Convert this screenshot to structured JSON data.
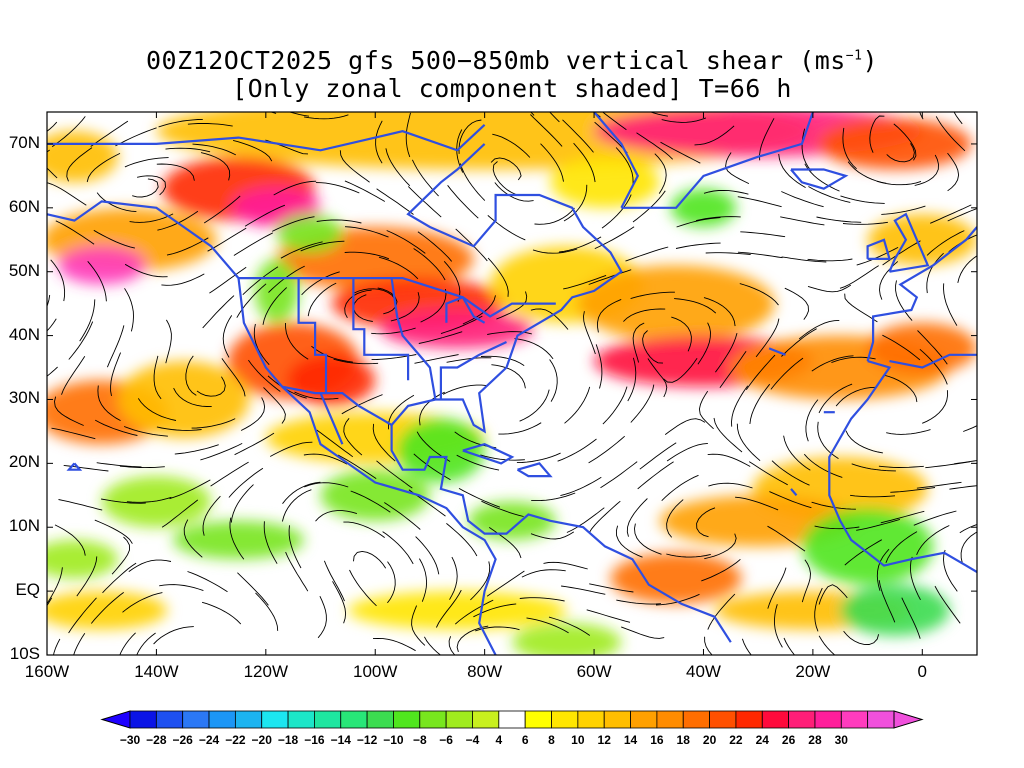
{
  "title": {
    "line1": "00Z12OCT2025 gfs 500−850mb vertical shear (ms",
    "unit_sup": "−1",
    "line1_end": ")",
    "line2": "[Only zonal component shaded] T=66 h"
  },
  "map": {
    "lat_labels": [
      "70N",
      "60N",
      "50N",
      "40N",
      "30N",
      "20N",
      "10N",
      "EQ",
      "10S"
    ],
    "lon_labels": [
      "160W",
      "140W",
      "120W",
      "100W",
      "80W",
      "60W",
      "40W",
      "20W",
      "0"
    ],
    "lat_range": [
      -10,
      75
    ],
    "lon_range": [
      -160,
      10
    ],
    "coastline_color": "#2f4fe0",
    "streamline_color": "#000000"
  },
  "colorbar": {
    "labels": [
      "−30",
      "−28",
      "−26",
      "−24",
      "−22",
      "−20",
      "−18",
      "−16",
      "−14",
      "−12",
      "−10",
      "−8",
      "−6",
      "−4",
      "4",
      "6",
      "8",
      "10",
      "12",
      "14",
      "16",
      "18",
      "20",
      "22",
      "24",
      "26",
      "28",
      "30"
    ],
    "colors": [
      "#0a14e6",
      "#1e50f0",
      "#2b78f5",
      "#1c96f5",
      "#1cb4f0",
      "#1ce6f0",
      "#1ce6c8",
      "#1ee6a0",
      "#28e678",
      "#3cdc50",
      "#50e61e",
      "#78e61e",
      "#a0eb1e",
      "#c8f01e",
      "#ffffff",
      "#ffff00",
      "#ffe600",
      "#ffd200",
      "#ffbe00",
      "#ffa000",
      "#ff8c00",
      "#ff6e00",
      "#ff5000",
      "#ff2800",
      "#ff0a3c",
      "#ff1e78",
      "#ff1e9b",
      "#ff3cbe",
      "#f050dc"
    ],
    "under_color": "#1e00ff",
    "over_color": "#f050dc"
  }
}
